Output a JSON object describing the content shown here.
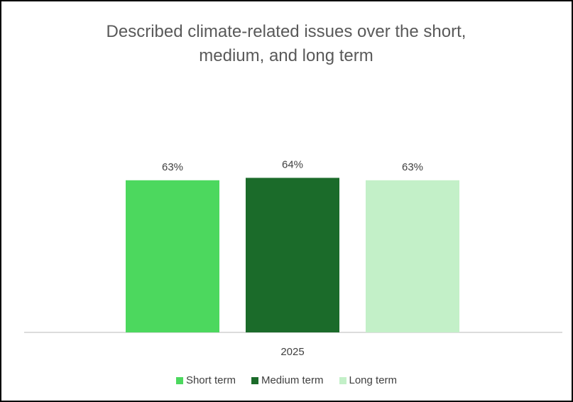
{
  "chart_data": {
    "type": "bar",
    "title": "Described climate-related issues over the short, medium, and long term",
    "categories": [
      "2025"
    ],
    "series": [
      {
        "name": "Short term",
        "values": [
          63
        ],
        "label": "63%",
        "color": "#4cd85e"
      },
      {
        "name": "Medium term",
        "values": [
          64
        ],
        "label": "64%",
        "color": "#1b6b2a"
      },
      {
        "name": "Long term",
        "values": [
          63
        ],
        "label": "63%",
        "color": "#c3f0c8"
      }
    ],
    "ylim": [
      0,
      100
    ],
    "grid": false,
    "legend": "bottom"
  }
}
